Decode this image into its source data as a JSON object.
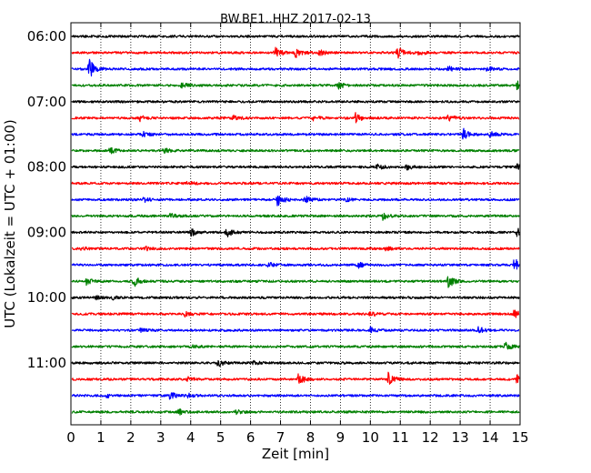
{
  "chart_data": {
    "type": "line",
    "title": "BW.BE1..HHZ 2017-02-13",
    "xlabel": "Zeit  [min]",
    "ylabel": "UTC (Lokalzeit = UTC + 01:00)",
    "xlim": [
      0,
      15
    ],
    "x_ticks": [
      "0",
      "1",
      "2",
      "3",
      "4",
      "5",
      "6",
      "7",
      "8",
      "9",
      "10",
      "11",
      "12",
      "13",
      "14",
      "15"
    ],
    "y_ticks": [
      {
        "label": "06:00",
        "row": 0
      },
      {
        "label": "07:00",
        "row": 4
      },
      {
        "label": "08:00",
        "row": 8
      },
      {
        "label": "09:00",
        "row": 12
      },
      {
        "label": "10:00",
        "row": 16
      },
      {
        "label": "11:00",
        "row": 20
      }
    ],
    "grid": "vertical-dotted",
    "color_cycle": [
      "#000000",
      "#ff0000",
      "#0000ff",
      "#008000"
    ],
    "series": [
      {
        "start": "06:00",
        "color": "#000000",
        "events": []
      },
      {
        "start": "06:15",
        "color": "#ff0000",
        "events": [
          {
            "minute": 6.8,
            "amp": 6
          },
          {
            "minute": 7.5,
            "amp": 5
          },
          {
            "minute": 8.3,
            "amp": 3
          },
          {
            "minute": 10.9,
            "amp": 7
          },
          {
            "minute": 11.6,
            "amp": 3
          }
        ]
      },
      {
        "start": "06:30",
        "color": "#0000ff",
        "events": [
          {
            "minute": 0.6,
            "amp": 11
          },
          {
            "minute": 12.6,
            "amp": 3
          },
          {
            "minute": 13.9,
            "amp": 3
          }
        ]
      },
      {
        "start": "06:45",
        "color": "#008000",
        "events": [
          {
            "minute": 3.7,
            "amp": 3
          },
          {
            "minute": 8.9,
            "amp": 4
          },
          {
            "minute": 14.9,
            "amp": 6
          }
        ]
      },
      {
        "start": "07:00",
        "color": "#000000",
        "events": []
      },
      {
        "start": "07:15",
        "color": "#ff0000",
        "events": [
          {
            "minute": 2.3,
            "amp": 3
          },
          {
            "minute": 5.4,
            "amp": 3
          },
          {
            "minute": 8.1,
            "amp": 3
          },
          {
            "minute": 9.5,
            "amp": 5
          },
          {
            "minute": 12.6,
            "amp": 4
          }
        ]
      },
      {
        "start": "07:30",
        "color": "#0000ff",
        "events": [
          {
            "minute": 2.4,
            "amp": 3
          },
          {
            "minute": 13.1,
            "amp": 6
          },
          {
            "minute": 14.0,
            "amp": 3
          }
        ]
      },
      {
        "start": "07:45",
        "color": "#008000",
        "events": [
          {
            "minute": 1.3,
            "amp": 3
          },
          {
            "minute": 3.1,
            "amp": 3
          }
        ]
      },
      {
        "start": "08:00",
        "color": "#000000",
        "events": [
          {
            "minute": 10.2,
            "amp": 3
          },
          {
            "minute": 11.2,
            "amp": 3
          },
          {
            "minute": 14.9,
            "amp": 3
          }
        ]
      },
      {
        "start": "08:15",
        "color": "#ff0000",
        "events": [
          {
            "minute": 3.9,
            "amp": 2
          }
        ]
      },
      {
        "start": "08:30",
        "color": "#0000ff",
        "events": [
          {
            "minute": 2.4,
            "amp": 3
          },
          {
            "minute": 6.9,
            "amp": 7
          },
          {
            "minute": 7.8,
            "amp": 4
          },
          {
            "minute": 9.2,
            "amp": 2
          }
        ]
      },
      {
        "start": "08:45",
        "color": "#008000",
        "events": [
          {
            "minute": 3.3,
            "amp": 3
          },
          {
            "minute": 10.4,
            "amp": 4
          }
        ]
      },
      {
        "start": "09:00",
        "color": "#000000",
        "events": [
          {
            "minute": 4.0,
            "amp": 4
          },
          {
            "minute": 5.2,
            "amp": 5
          },
          {
            "minute": 14.9,
            "amp": 4
          }
        ]
      },
      {
        "start": "09:15",
        "color": "#ff0000",
        "events": [
          {
            "minute": 0.3,
            "amp": 2
          },
          {
            "minute": 2.5,
            "amp": 2
          },
          {
            "minute": 10.5,
            "amp": 2
          }
        ]
      },
      {
        "start": "09:30",
        "color": "#0000ff",
        "events": [
          {
            "minute": 6.6,
            "amp": 3
          },
          {
            "minute": 9.6,
            "amp": 3
          },
          {
            "minute": 14.8,
            "amp": 8
          }
        ]
      },
      {
        "start": "09:45",
        "color": "#008000",
        "events": [
          {
            "minute": 0.5,
            "amp": 4
          },
          {
            "minute": 2.1,
            "amp": 6
          },
          {
            "minute": 12.6,
            "amp": 8
          }
        ]
      },
      {
        "start": "10:00",
        "color": "#000000",
        "events": [
          {
            "minute": 0.8,
            "amp": 2
          },
          {
            "minute": 1.4,
            "amp": 2
          }
        ]
      },
      {
        "start": "10:15",
        "color": "#ff0000",
        "events": [
          {
            "minute": 3.8,
            "amp": 3
          },
          {
            "minute": 10.0,
            "amp": 3
          },
          {
            "minute": 14.8,
            "amp": 4
          }
        ]
      },
      {
        "start": "10:30",
        "color": "#0000ff",
        "events": [
          {
            "minute": 2.3,
            "amp": 2
          },
          {
            "minute": 10.0,
            "amp": 3
          },
          {
            "minute": 13.6,
            "amp": 4
          }
        ]
      },
      {
        "start": "10:45",
        "color": "#008000",
        "events": [
          {
            "minute": 4.0,
            "amp": 2
          },
          {
            "minute": 14.5,
            "amp": 5
          }
        ]
      },
      {
        "start": "11:00",
        "color": "#000000",
        "events": [
          {
            "minute": 4.9,
            "amp": 4
          },
          {
            "minute": 6.1,
            "amp": 2
          }
        ]
      },
      {
        "start": "11:15",
        "color": "#ff0000",
        "events": [
          {
            "minute": 3.9,
            "amp": 2
          },
          {
            "minute": 7.6,
            "amp": 6
          },
          {
            "minute": 10.6,
            "amp": 7
          },
          {
            "minute": 14.9,
            "amp": 5
          }
        ]
      },
      {
        "start": "11:30",
        "color": "#0000ff",
        "events": [
          {
            "minute": 1.2,
            "amp": 2
          },
          {
            "minute": 3.3,
            "amp": 4
          },
          {
            "minute": 3.9,
            "amp": 2
          }
        ]
      },
      {
        "start": "11:45",
        "color": "#008000",
        "events": [
          {
            "minute": 3.6,
            "amp": 3
          },
          {
            "minute": 5.5,
            "amp": 2
          }
        ]
      }
    ]
  }
}
